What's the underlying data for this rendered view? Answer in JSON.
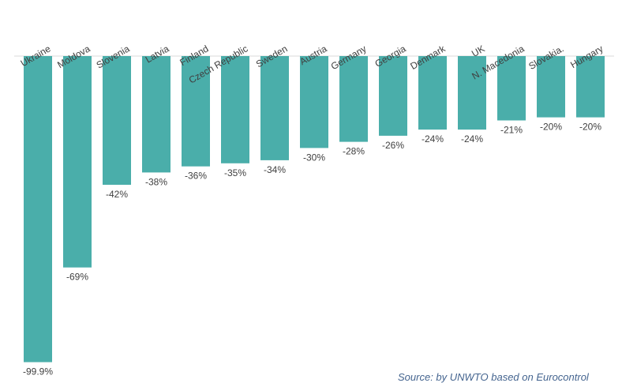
{
  "chart_data": {
    "type": "bar",
    "categories": [
      "Ukraine",
      "Moldova",
      "Slovenia",
      "Latvia",
      "Finland",
      "Czech Republic",
      "Sweden",
      "Austria",
      "Germany",
      "Georgia",
      "Denmark",
      "UK",
      "N. Macedonia",
      "Slovakia.",
      "Hungary"
    ],
    "values": [
      -99.9,
      -69,
      -42,
      -38,
      -36,
      -35,
      -34,
      -30,
      -28,
      -26,
      -24,
      -24,
      -21,
      -20,
      -20
    ],
    "value_labels": [
      "-99.9%",
      "-69%",
      "-42%",
      "-38%",
      "-36%",
      "-35%",
      "-34%",
      "-30%",
      "-28%",
      "-26%",
      "-24%",
      "-24%",
      "-21%",
      "-20%",
      "-20%"
    ],
    "ylim": [
      -100,
      0
    ],
    "grid": false,
    "legend": "none",
    "colors": {
      "bar": "#4aaeaa",
      "baseline": "#d9d9d9",
      "label": "#404040",
      "source": "#44648f"
    }
  },
  "source_note": "Source: by UNWTO based on Eurocontrol"
}
